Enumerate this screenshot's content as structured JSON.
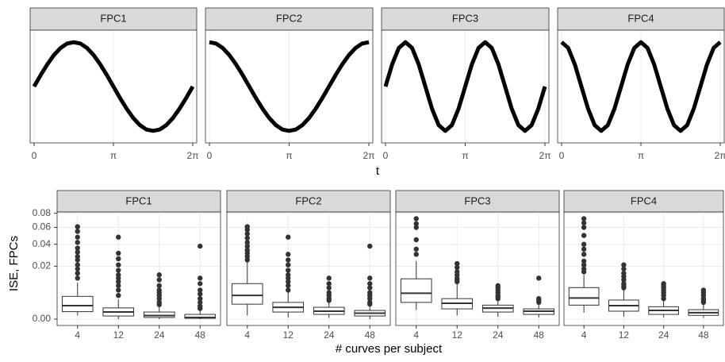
{
  "chart_data": [
    {
      "type": "line",
      "xlabel": "t",
      "x": [
        0,
        0.2618,
        0.5236,
        0.7854,
        1.0472,
        1.309,
        1.5708,
        1.8326,
        2.0944,
        2.3562,
        2.618,
        2.8798,
        3.1416,
        3.4034,
        3.6652,
        3.927,
        4.1888,
        4.4506,
        4.7124,
        4.9742,
        5.236,
        5.4978,
        5.7596,
        6.0214,
        6.2832
      ],
      "xlim": [
        0,
        6.2832
      ],
      "ylim": [
        -1.2,
        1.2
      ],
      "xticks": [
        0,
        {
          "value": 3.1416,
          "label": "π"
        },
        {
          "value": 6.2832,
          "label": "2π"
        }
      ],
      "grid": true,
      "color": "#000000",
      "panels": [
        {
          "title": "FPC1",
          "values": [
            0,
            0.26,
            0.5,
            0.71,
            0.87,
            0.97,
            1,
            0.97,
            0.87,
            0.71,
            0.5,
            0.26,
            0,
            -0.26,
            -0.5,
            -0.71,
            -0.87,
            -0.97,
            -1,
            -0.97,
            -0.87,
            -0.71,
            -0.5,
            -0.26,
            0
          ]
        },
        {
          "title": "FPC2",
          "values": [
            1,
            0.97,
            0.87,
            0.71,
            0.5,
            0.26,
            0,
            -0.26,
            -0.5,
            -0.71,
            -0.87,
            -0.97,
            -1,
            -0.97,
            -0.87,
            -0.71,
            -0.5,
            -0.26,
            0,
            0.26,
            0.5,
            0.71,
            0.87,
            0.97,
            1
          ]
        },
        {
          "title": "FPC3",
          "values": [
            0,
            0.5,
            0.87,
            1,
            0.87,
            0.5,
            0,
            -0.5,
            -0.87,
            -1,
            -0.87,
            -0.5,
            0,
            0.5,
            0.87,
            1,
            0.87,
            0.5,
            0,
            -0.5,
            -0.87,
            -1,
            -0.87,
            -0.5,
            0
          ]
        },
        {
          "title": "FPC4",
          "values": [
            1,
            0.87,
            0.5,
            0,
            -0.5,
            -0.87,
            -1,
            -0.87,
            -0.5,
            0,
            0.5,
            0.87,
            1,
            0.87,
            0.5,
            0,
            -0.5,
            -0.87,
            -1,
            -0.87,
            -0.5,
            0,
            0.5,
            0.87,
            1
          ]
        }
      ]
    },
    {
      "type": "box",
      "xlabel": "# curves per subject",
      "ylabel": "ISE, FPCs",
      "yscale": "sqrt",
      "ylim": [
        0,
        0.082
      ],
      "yticks": [
        {
          "value": 0,
          "label": "0.00"
        },
        0.02,
        0.04,
        0.06,
        0.08
      ],
      "categories": [
        "4",
        "12",
        "24",
        "48"
      ],
      "grid": true,
      "panels": [
        {
          "title": "FPC1",
          "boxes": [
            {
              "min": 0.0001,
              "q1": 0.0004,
              "median": 0.0013,
              "q3": 0.0037,
              "max": 0.0095,
              "outliers": [
                0.012,
                0.015,
                0.018,
                0.021,
                0.025,
                0.028,
                0.032,
                0.036,
                0.042,
                0.048,
                0.055,
                0.061
              ]
            },
            {
              "min": 0,
              "q1": 7e-05,
              "median": 0.00036,
              "q3": 0.0009,
              "max": 0.0028,
              "outliers": [
                0.004,
                0.006,
                0.008,
                0.01,
                0.012,
                0.014,
                0.017,
                0.021,
                0.026,
                0.031,
                0.048
              ]
            },
            {
              "min": 0,
              "q1": 2e-05,
              "median": 9e-05,
              "q3": 0.00036,
              "max": 0.001,
              "outliers": [
                0.0015,
                0.002,
                0.003,
                0.004,
                0.005,
                0.006,
                0.008,
                0.011,
                0.014
              ]
            },
            {
              "min": 0,
              "q1": 5e-06,
              "median": 2e-05,
              "q3": 0.00016,
              "max": 0.0005,
              "outliers": [
                0.0008,
                0.0012,
                0.002,
                0.003,
                0.0045,
                0.006,
                0.009,
                0.012,
                0.038
              ]
            }
          ]
        },
        {
          "title": "FPC2",
          "boxes": [
            {
              "min": 0.0001,
              "q1": 0.0016,
              "median": 0.004,
              "q3": 0.009,
              "max": 0.023,
              "outliers": [
                0.025,
                0.028,
                0.031,
                0.034,
                0.038,
                0.042,
                0.047,
                0.052,
                0.057,
                0.061
              ]
            },
            {
              "min": 2e-05,
              "q1": 0.00036,
              "median": 0.001,
              "q3": 0.002,
              "max": 0.0051,
              "outliers": [
                0.006,
                0.008,
                0.01,
                0.012,
                0.014,
                0.017,
                0.021,
                0.025,
                0.03,
                0.048
              ]
            },
            {
              "min": 1e-05,
              "q1": 0.00016,
              "median": 0.00045,
              "q3": 0.001,
              "max": 0.0021,
              "outliers": [
                0.0025,
                0.003,
                0.004,
                0.005,
                0.007,
                0.009,
                0.012
              ]
            },
            {
              "min": 0,
              "q1": 7e-05,
              "median": 0.00025,
              "q3": 0.00054,
              "max": 0.0013,
              "outliers": [
                0.0016,
                0.002,
                0.003,
                0.004,
                0.005,
                0.007,
                0.009,
                0.012,
                0.038
              ]
            }
          ]
        },
        {
          "title": "FPC3",
          "boxes": [
            {
              "min": 0.0006,
              "q1": 0.002,
              "median": 0.0048,
              "q3": 0.0116,
              "max": 0.024,
              "outliers": [
                0.03,
                0.035,
                0.045,
                0.06,
                0.065,
                0.072
              ]
            },
            {
              "min": 0.0001,
              "q1": 0.00075,
              "median": 0.0018,
              "q3": 0.003,
              "max": 0.009,
              "outliers": [
                0.01,
                0.011,
                0.012,
                0.014,
                0.016,
                0.019,
                0.022
              ]
            },
            {
              "min": 4e-05,
              "q1": 0.00036,
              "median": 0.00087,
              "q3": 0.0014,
              "max": 0.0028,
              "outliers": [
                0.003,
                0.0035,
                0.004,
                0.005,
                0.006,
                0.007,
                0.008
              ]
            },
            {
              "min": 2e-05,
              "q1": 0.00016,
              "median": 0.00045,
              "q3": 0.00075,
              "max": 0.0016,
              "outliers": [
                0.002,
                0.0025,
                0.003,
                0.012
              ]
            }
          ]
        },
        {
          "title": "FPC4",
          "boxes": [
            {
              "min": 0.0003,
              "q1": 0.0014,
              "median": 0.0032,
              "q3": 0.0071,
              "max": 0.014,
              "outliers": [
                0.016,
                0.018,
                0.021,
                0.024,
                0.03,
                0.035,
                0.04,
                0.05,
                0.06,
                0.066,
                0.072
              ]
            },
            {
              "min": 5e-05,
              "q1": 0.00045,
              "median": 0.0013,
              "q3": 0.0026,
              "max": 0.0065,
              "outliers": [
                0.007,
                0.008,
                0.009,
                0.011,
                0.013,
                0.015,
                0.018,
                0.021
              ]
            },
            {
              "min": 2e-05,
              "q1": 0.00016,
              "median": 0.00054,
              "q3": 0.0011,
              "max": 0.0025,
              "outliers": [
                0.003,
                0.004,
                0.005,
                0.006,
                0.007,
                0.008,
                0.009
              ]
            },
            {
              "min": 1e-05,
              "q1": 0.0001,
              "median": 0.0003,
              "q3": 0.00064,
              "max": 0.0015,
              "outliers": [
                0.002,
                0.0025,
                0.003,
                0.004,
                0.005,
                0.006
              ]
            }
          ]
        }
      ]
    }
  ]
}
